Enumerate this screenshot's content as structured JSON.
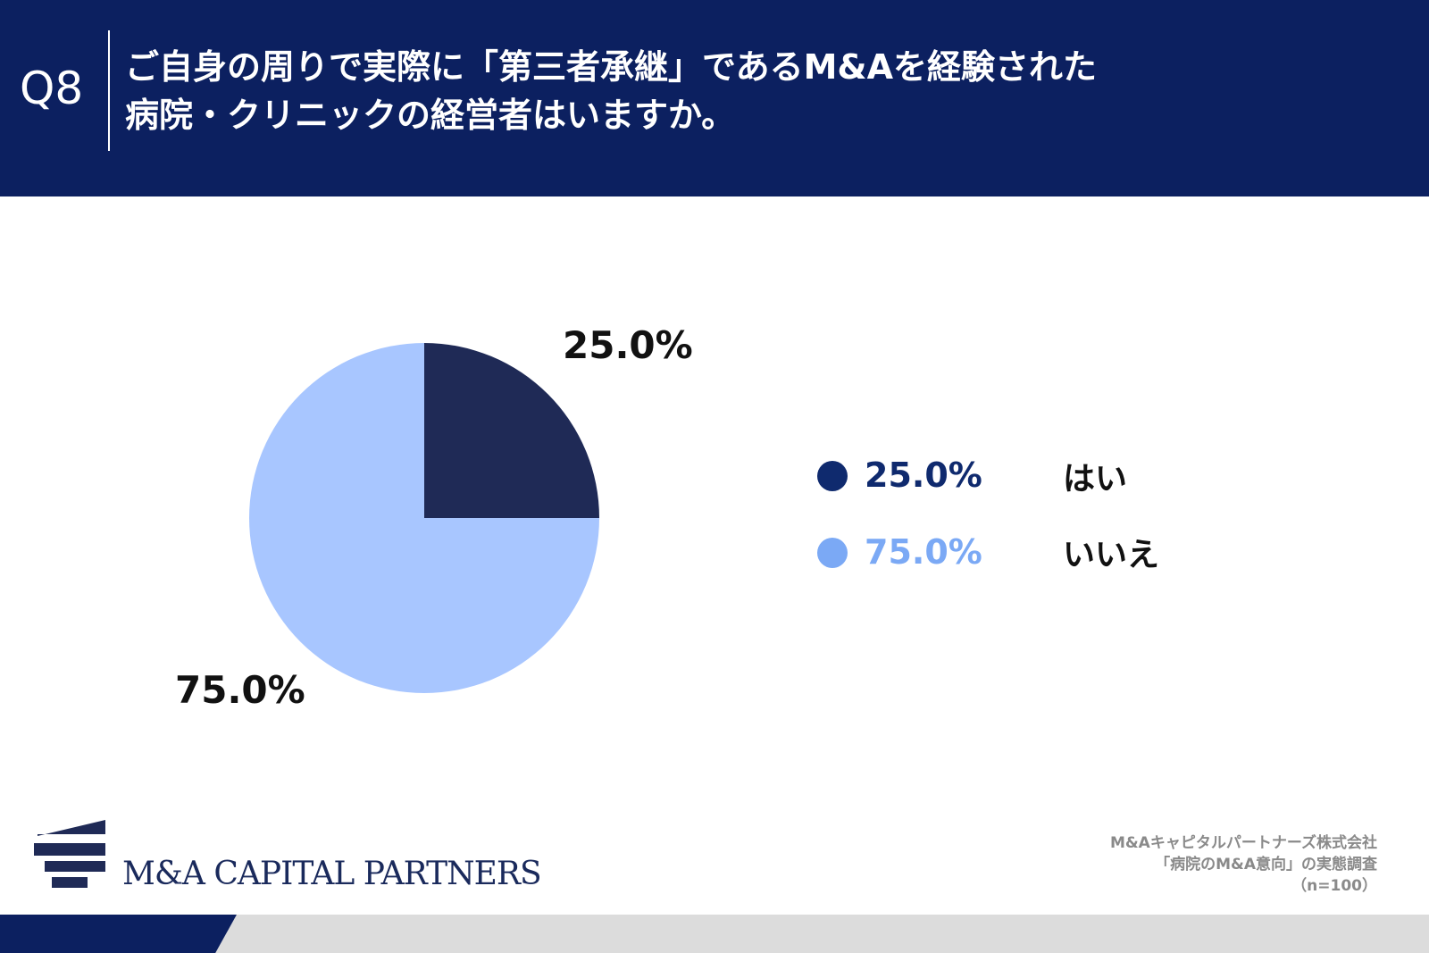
{
  "header": {
    "q_label": "Q8",
    "question_line1": "ご自身の周りで実際に「第三者承継」であるM&Aを経験された",
    "question_line2": "病院・クリニックの経営者はいますか。"
  },
  "colors": {
    "header_bg": "#0c2060",
    "slice_yes": "#1f2a56",
    "slice_no": "#a8c6ff",
    "legend_yes": "#0f2a6e",
    "legend_no": "#7ba9f5"
  },
  "chart_data": {
    "type": "pie",
    "categories": [
      "はい",
      "いいえ"
    ],
    "values": [
      25.0,
      75.0
    ],
    "data_labels": [
      "25.0%",
      "75.0%"
    ],
    "legend_position": "right"
  },
  "legend": {
    "items": [
      {
        "pct": "25.0%",
        "label": "はい",
        "color": "#0f2a6e"
      },
      {
        "pct": "75.0%",
        "label": "いいえ",
        "color": "#7ba9f5"
      }
    ]
  },
  "source": {
    "line1": "M&Aキャピタルパートナーズ株式会社",
    "line2": "「病院のM&A意向」の実態調査",
    "line3": "（n=100）"
  },
  "logo": {
    "text": "M&A CAPITAL PARTNERS"
  }
}
